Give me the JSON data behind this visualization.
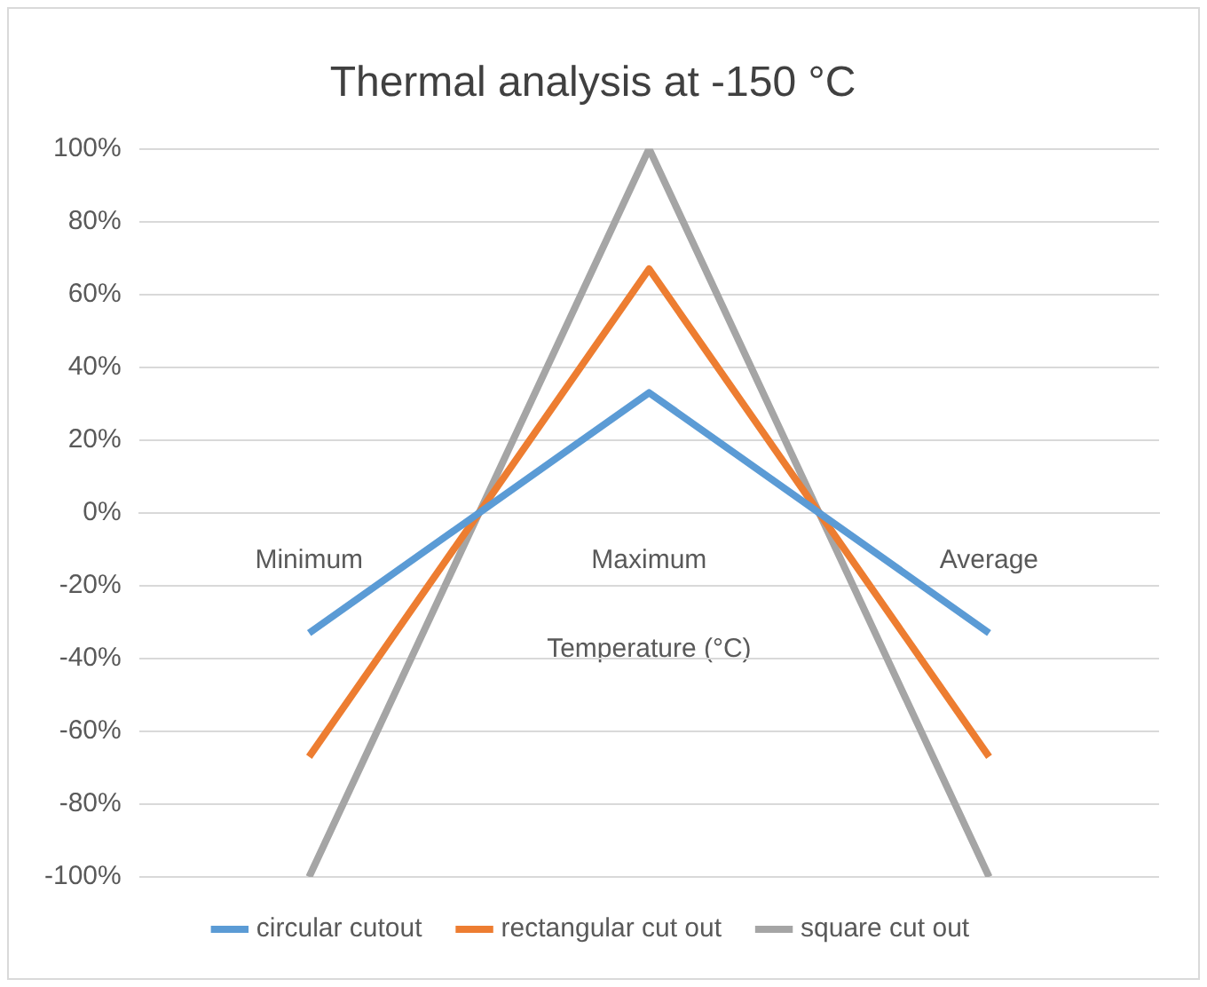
{
  "chart_data": {
    "type": "line",
    "title": "Thermal analysis at -150 °C",
    "xlabel": "Temperature (°C)",
    "categories": [
      "Minimum",
      "Maximum",
      "Average"
    ],
    "series": [
      {
        "name": "circular cutout",
        "color": "#5b9bd5",
        "values": [
          -33,
          33,
          -33
        ]
      },
      {
        "name": "rectangular cut out",
        "color": "#ed7d31",
        "values": [
          -67,
          67,
          -67
        ]
      },
      {
        "name": "square cut out",
        "color": "#a5a5a5",
        "values": [
          -100,
          100,
          -100
        ]
      }
    ],
    "ylim": [
      -100,
      100
    ],
    "yticks": [
      {
        "value": -100,
        "label": "-100%"
      },
      {
        "value": -80,
        "label": "-80%"
      },
      {
        "value": -60,
        "label": "-60%"
      },
      {
        "value": -40,
        "label": "-40%"
      },
      {
        "value": -20,
        "label": "-20%"
      },
      {
        "value": 0,
        "label": "0%"
      },
      {
        "value": 20,
        "label": "20%"
      },
      {
        "value": 40,
        "label": "40%"
      },
      {
        "value": 60,
        "label": "60%"
      },
      {
        "value": 80,
        "label": "80%"
      },
      {
        "value": 100,
        "label": "100%"
      }
    ],
    "grid": "y",
    "legend": "bottom",
    "marker": "none",
    "line_style": "solid"
  }
}
